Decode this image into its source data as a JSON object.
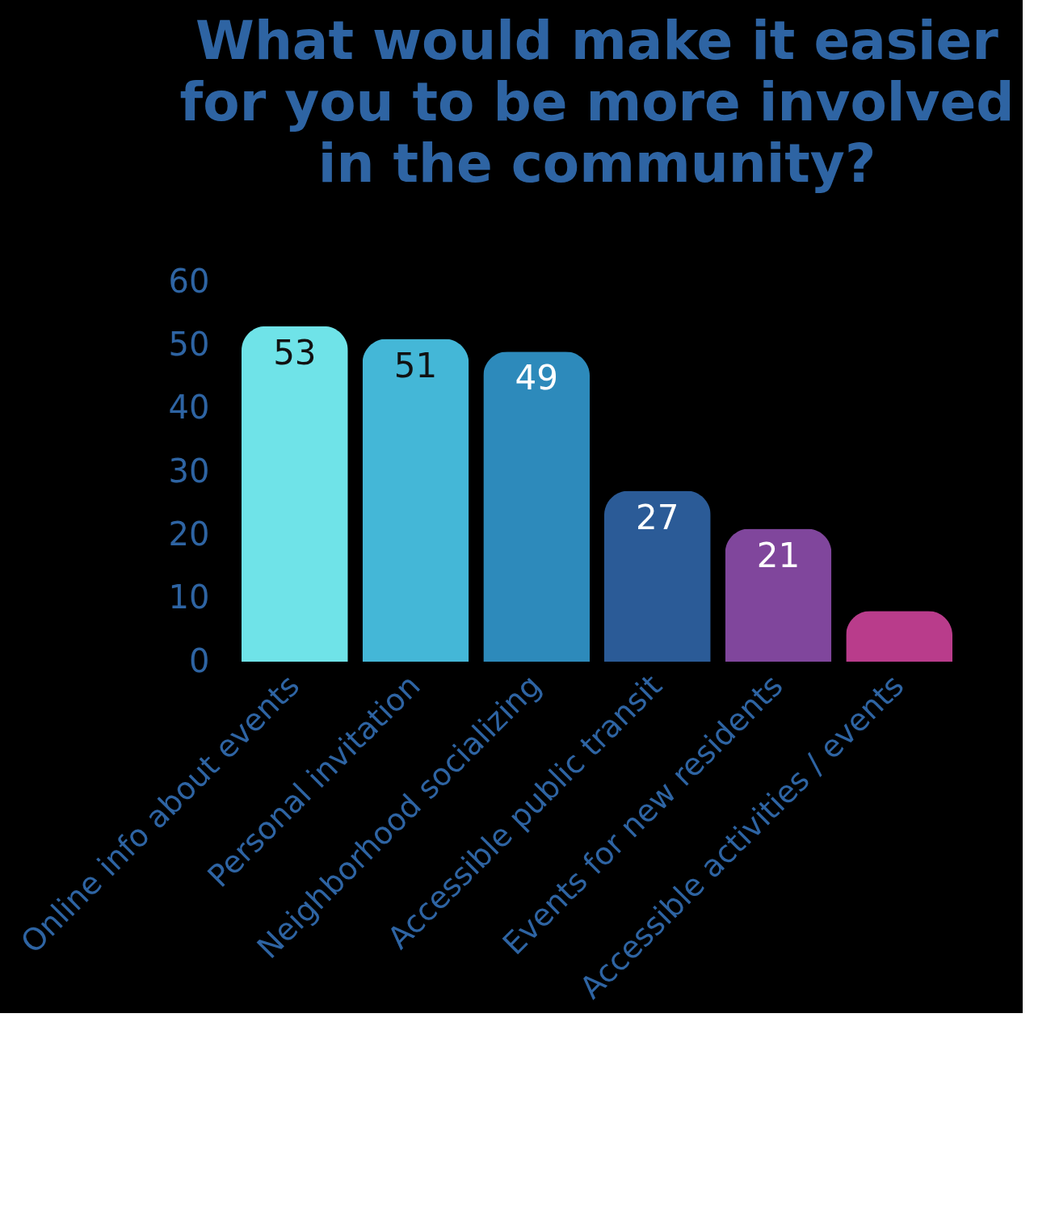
{
  "chart_data": {
    "type": "bar",
    "title": "What would make it easier for you to be more involved in the community?",
    "categories": [
      "Online info about events",
      "Personal invitation",
      "Neighborhood socializing",
      "Accessible public transit",
      "Events for new residents",
      "Accessible activities / events"
    ],
    "values": [
      53,
      51,
      49,
      27,
      21,
      8
    ],
    "colors": [
      "#6fe3e8",
      "#44b7d7",
      "#2d8abb",
      "#2b5b97",
      "#80469c",
      "#b93c8b"
    ],
    "value_labels": [
      "53",
      "51",
      "49",
      "27",
      "21",
      null
    ],
    "ylim": [
      0,
      60
    ],
    "yticks": [
      0,
      10,
      20,
      30,
      40,
      50,
      60
    ],
    "grid": false
  }
}
